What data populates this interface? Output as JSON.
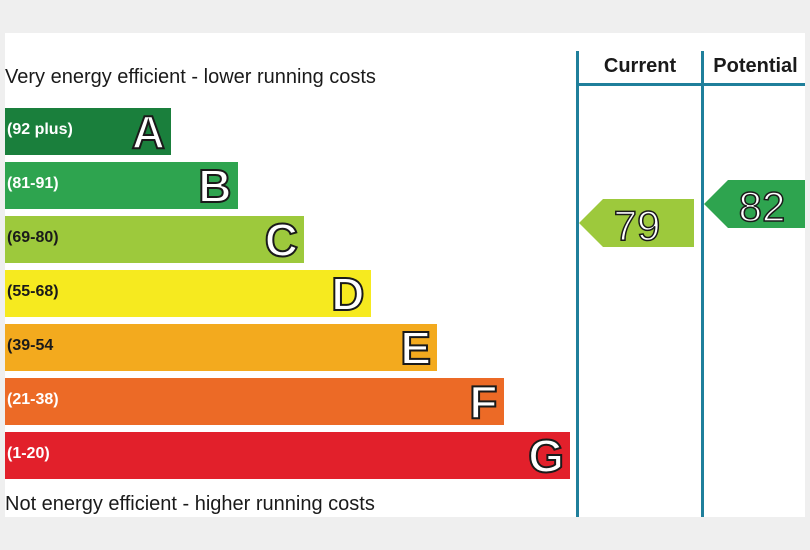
{
  "chart_data": {
    "type": "bar",
    "top_caption": "Very energy efficient - lower running costs",
    "bottom_caption": "Not energy efficient - higher running costs",
    "bands": [
      {
        "letter": "A",
        "range": "(92 plus)",
        "color": "#1a7f3c"
      },
      {
        "letter": "B",
        "range": "(81-91)",
        "color": "#2ea44f"
      },
      {
        "letter": "C",
        "range": "(69-80)",
        "color": "#9dc93c"
      },
      {
        "letter": "D",
        "range": "(55-68)",
        "color": "#f6ea1f"
      },
      {
        "letter": "E",
        "range": "(39-54",
        "color": "#f3aa1e"
      },
      {
        "letter": "F",
        "range": "(21-38)",
        "color": "#ec6a26"
      },
      {
        "letter": "G",
        "range": "(1-20)",
        "color": "#e2202b"
      }
    ],
    "columns": [
      "Current",
      "Potential"
    ],
    "current": {
      "value": 79,
      "band": "C",
      "color": "#9dc93c"
    },
    "potential": {
      "value": 82,
      "band": "B",
      "color": "#2ea44f"
    }
  }
}
